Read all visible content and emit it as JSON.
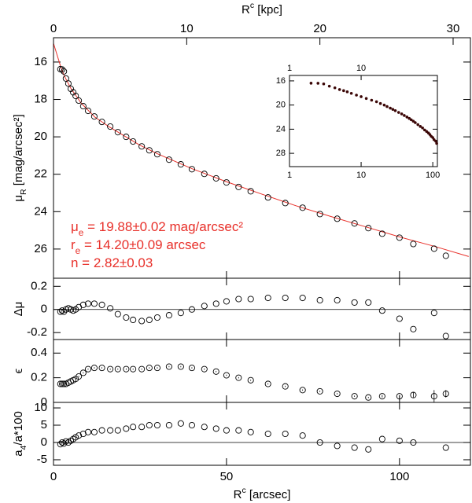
{
  "chart_data": [
    {
      "type": "scatter",
      "x2label": [
        {
          "text": "R"
        },
        {
          "sup": "c"
        },
        {
          "text": " [kpc]"
        }
      ],
      "x2lim": [
        0,
        31.3
      ],
      "x2ticks": [
        0,
        10,
        20,
        30
      ],
      "ylabel": [
        {
          "text": "μ"
        },
        {
          "sub": "R"
        },
        {
          "text": " [mag/arcsec²]"
        }
      ],
      "ylim": [
        27.56,
        14.7
      ],
      "yticks": [
        16,
        18,
        20,
        22,
        24,
        26
      ],
      "x": [
        2,
        2.5,
        3,
        3.6,
        4.3,
        5,
        5.7,
        6.4,
        7.3,
        8.6,
        10,
        11.8,
        14,
        16.4,
        18.6,
        21,
        23,
        25.5,
        27.7,
        30,
        33.4,
        36.8,
        40,
        43.6,
        47,
        50,
        53.5,
        57,
        62,
        67,
        72,
        77,
        82,
        87,
        91,
        95,
        100,
        104,
        110,
        113.4
      ],
      "values": [
        16.38,
        16.4,
        16.5,
        16.88,
        17.15,
        17.43,
        17.62,
        17.81,
        18.06,
        18.36,
        18.61,
        18.91,
        19.2,
        19.45,
        19.75,
        20.0,
        20.25,
        20.51,
        20.72,
        20.93,
        21.22,
        21.47,
        21.73,
        21.98,
        22.22,
        22.44,
        22.68,
        22.91,
        23.24,
        23.54,
        23.79,
        24.13,
        24.38,
        24.63,
        24.88,
        25.18,
        25.39,
        25.73,
        25.98,
        26.36
      ],
      "color": "#000000",
      "fit": {
        "color": "#e8302a",
        "x": [
          0,
          1,
          2,
          3,
          5,
          8,
          12,
          16,
          20,
          25,
          30,
          40,
          50,
          60,
          70,
          80,
          90,
          100,
          110,
          120
        ],
        "values": [
          15.0,
          15.6,
          16.2,
          16.7,
          17.4,
          18.2,
          18.95,
          19.45,
          19.9,
          20.45,
          20.9,
          21.7,
          22.4,
          23.05,
          23.68,
          24.25,
          24.8,
          25.35,
          25.85,
          26.4
        ]
      },
      "annotations": [
        [
          {
            "text": "μ"
          },
          {
            "sub": "e"
          },
          {
            "text": " = 19.88±0.02 mag/arcsec²"
          }
        ],
        [
          {
            "text": "r"
          },
          {
            "sub": "e"
          },
          {
            "text": " = 14.20±0.09 arcsec"
          }
        ],
        [
          {
            "text": "n = 2.82±0.03"
          }
        ]
      ]
    },
    {
      "type": "scatter",
      "ylabel": [
        {
          "text": "Δμ"
        }
      ],
      "ylim": [
        -0.26,
        0.27
      ],
      "yticks": [
        -0.2,
        0,
        0.2
      ],
      "zero_line": true,
      "values": [
        -0.02,
        -0.01,
        -0.02,
        0,
        0.01,
        0,
        -0.01,
        0,
        0.02,
        0.04,
        0.05,
        0.05,
        0.04,
        0.01,
        -0.04,
        -0.07,
        -0.09,
        -0.1,
        -0.09,
        -0.07,
        -0.05,
        -0.03,
        0,
        0.03,
        0.05,
        0.07,
        0.09,
        0.09,
        0.1,
        0.1,
        0.1,
        0.08,
        0.08,
        0.06,
        0.06,
        -0.01,
        -0.08,
        -0.17,
        -0.03,
        -0.23
      ]
    },
    {
      "type": "scatter",
      "ylabel": [
        {
          "text": "ϵ"
        }
      ],
      "ylim": [
        0,
        0.51
      ],
      "yticks": [
        0,
        0.2,
        0.4
      ],
      "values": [
        0.15,
        0.15,
        0.15,
        0.15,
        0.16,
        0.17,
        0.18,
        0.19,
        0.21,
        0.24,
        0.27,
        0.28,
        0.28,
        0.27,
        0.27,
        0.27,
        0.27,
        0.27,
        0.28,
        0.28,
        0.29,
        0.29,
        0.28,
        0.27,
        0.25,
        0.22,
        0.2,
        0.18,
        0.15,
        0.13,
        0.1,
        0.09,
        0.07,
        0.05,
        0.04,
        0.05,
        0.05,
        0.06,
        0.05,
        0.07
      ],
      "errors": [
        0.005,
        0.005,
        0.005,
        0.005,
        0.005,
        0.005,
        0.005,
        0.005,
        0.005,
        0.005,
        0.005,
        0.005,
        0.005,
        0.005,
        0.005,
        0.005,
        0.005,
        0.005,
        0.005,
        0.005,
        0.005,
        0.005,
        0.005,
        0.005,
        0.005,
        0.005,
        0.005,
        0.005,
        0.005,
        0.005,
        0.005,
        0.005,
        0.005,
        0.005,
        0.005,
        0.01,
        0.01,
        0.02,
        0.05,
        0.03
      ]
    },
    {
      "type": "scatter",
      "ylabel": [
        {
          "text": "a"
        },
        {
          "sub": "4"
        },
        {
          "text": "/a*100"
        }
      ],
      "ylim": [
        -6.6,
        11.6
      ],
      "yticks": [
        -5,
        0,
        5,
        10
      ],
      "zero_line": true,
      "xlabel": [
        {
          "text": "R"
        },
        {
          "sup": "c"
        },
        {
          "text": " [arcsec]"
        }
      ],
      "xlim": [
        0,
        120.5
      ],
      "xticks": [
        0,
        50,
        100
      ],
      "values": [
        -0.5,
        0,
        -0.3,
        0.3,
        0,
        0.5,
        1,
        1.5,
        2,
        2.5,
        3,
        3,
        3.5,
        3.5,
        3.5,
        4,
        4.5,
        4.5,
        5,
        5,
        5,
        5.5,
        5,
        4.5,
        4,
        3.5,
        3.5,
        3,
        2.5,
        2.5,
        2,
        0,
        -1,
        -1.5,
        -2,
        1,
        0.5,
        0,
        null,
        -1.5
      ]
    },
    {
      "type": "scatter",
      "xscale": "log",
      "xlim": [
        1,
        116
      ],
      "xticks": [
        1,
        10,
        100
      ],
      "x2ticks": [
        1,
        10
      ],
      "ylim": [
        30.2,
        15.1
      ],
      "yticks": [
        16,
        20,
        24,
        28
      ],
      "color": "#3a0505"
    }
  ]
}
